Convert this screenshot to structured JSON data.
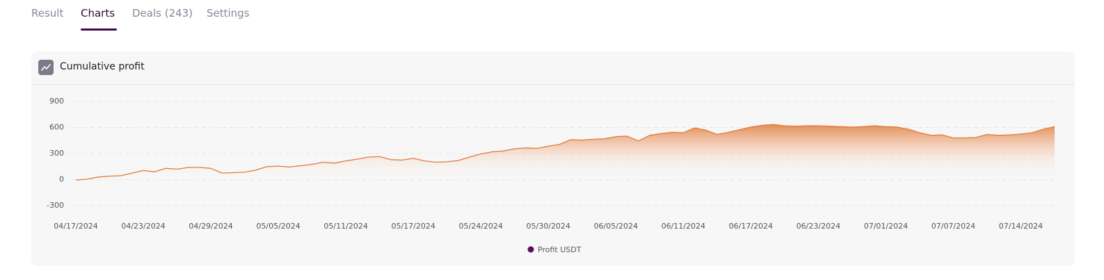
{
  "tabs": [
    "Result",
    "Charts",
    "Deals (243)",
    "Settings"
  ],
  "active_tab": 1,
  "card": {
    "title": "Cumulative profit"
  },
  "chart_data": {
    "type": "line",
    "categories": [
      "04/17/2024",
      null,
      null,
      null,
      null,
      null,
      "04/23/2024",
      null,
      null,
      null,
      null,
      null,
      "04/29/2024",
      null,
      null,
      null,
      null,
      null,
      "05/05/2024",
      null,
      null,
      null,
      null,
      null,
      "05/11/2024",
      null,
      null,
      null,
      null,
      null,
      "05/17/2024",
      null,
      null,
      null,
      null,
      null,
      "05/24/2024",
      null,
      null,
      null,
      null,
      null,
      "05/30/2024",
      null,
      null,
      null,
      null,
      null,
      "06/05/2024",
      null,
      null,
      null,
      null,
      null,
      "06/11/2024",
      null,
      null,
      null,
      null,
      null,
      "06/17/2024",
      null,
      null,
      null,
      null,
      null,
      "06/23/2024",
      null,
      null,
      null,
      null,
      null,
      "07/01/2024",
      null,
      null,
      null,
      null,
      null,
      "07/07/2024",
      null,
      null,
      null,
      null,
      null,
      "07/14/2024",
      null,
      null,
      null
    ],
    "series": [
      {
        "name": "Profit USDT",
        "color": "#e07b39",
        "legend_color": "#5c0f5e",
        "values": [
          -5,
          5,
          30,
          40,
          45,
          75,
          105,
          90,
          130,
          120,
          140,
          140,
          130,
          75,
          80,
          85,
          110,
          150,
          155,
          145,
          160,
          175,
          200,
          190,
          215,
          235,
          260,
          265,
          230,
          225,
          245,
          215,
          200,
          205,
          220,
          260,
          295,
          320,
          330,
          355,
          365,
          360,
          385,
          405,
          460,
          455,
          465,
          470,
          495,
          500,
          445,
          510,
          530,
          545,
          540,
          595,
          570,
          520,
          545,
          575,
          605,
          625,
          635,
          620,
          615,
          620,
          620,
          615,
          610,
          605,
          610,
          620,
          610,
          605,
          580,
          540,
          510,
          515,
          480,
          480,
          485,
          520,
          510,
          515,
          525,
          540,
          580,
          610
        ]
      }
    ],
    "ylim": [
      -300,
      900
    ],
    "yticks": [
      -300,
      0,
      300,
      600,
      900
    ],
    "grid": true,
    "legend": "bottom"
  }
}
